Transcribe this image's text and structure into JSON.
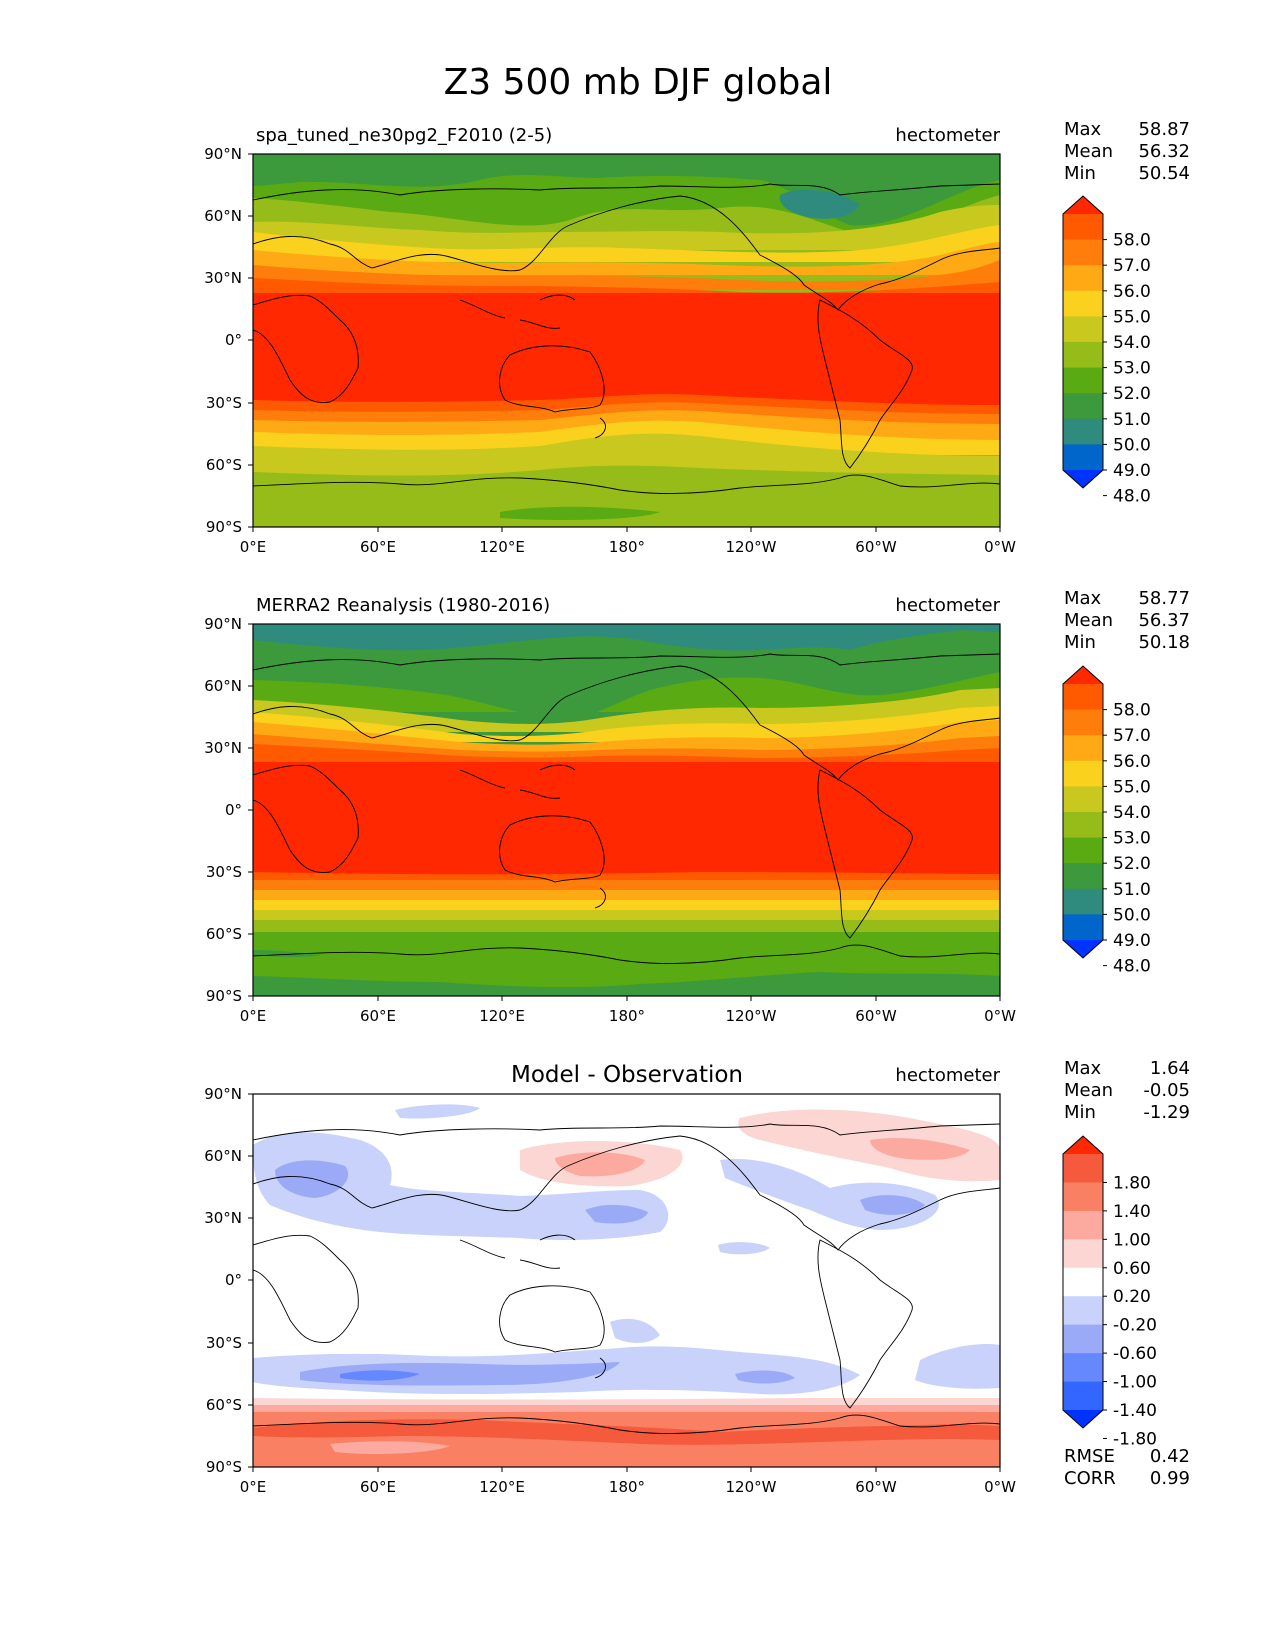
{
  "title": "Z3 500 mb DJF global",
  "colors": {
    "abs_levels": [
      "#0033ff",
      "#0066cc",
      "#2e8b7e",
      "#3c9a3c",
      "#5aaa14",
      "#96bc19",
      "#c8c81e",
      "#fad21e",
      "#ffaa14",
      "#ff7d0a",
      "#ff5a00",
      "#ff2800"
    ],
    "diff_levels": [
      "#0033ff",
      "#3366ff",
      "#6688ff",
      "#9aaaf6",
      "#c8d2fa",
      "#ffffff",
      "#fcd6d2",
      "#fcaaa0",
      "#fa8064",
      "#f55a3c",
      "#ff2800"
    ],
    "coast": "#000000"
  },
  "axes": {
    "lat_ticks": [
      "90°N",
      "60°N",
      "30°N",
      "0°",
      "30°S",
      "60°S",
      "90°S"
    ],
    "lon_ticks": [
      "0°E",
      "60°E",
      "120°E",
      "180°",
      "120°W",
      "60°W",
      "0°W"
    ]
  },
  "chart_data": [
    {
      "type": "heatmap",
      "title": "spa_tuned_ne30pg2_F2010 (2-5)",
      "units": "hectometer",
      "xlabel": "",
      "ylabel": "",
      "xlim": [
        0,
        360
      ],
      "ylim": [
        -90,
        90
      ],
      "stats": {
        "Max": "58.87",
        "Mean": "56.32",
        "Min": "50.54"
      },
      "colorbar_ticks": [
        "58.0",
        "57.0",
        "56.0",
        "55.0",
        "54.0",
        "53.0",
        "52.0",
        "51.0",
        "50.0",
        "49.0",
        "48.0"
      ],
      "zonal_profile": {
        "lat": [
          90,
          75,
          60,
          45,
          30,
          20,
          0,
          -20,
          -30,
          -45,
          -60,
          -75,
          -90
        ],
        "values": [
          51.2,
          51.5,
          52.4,
          54.3,
          56.9,
          58.2,
          58.7,
          58.3,
          57.8,
          55.0,
          53.2,
          52.5,
          52.4
        ]
      }
    },
    {
      "type": "heatmap",
      "title": "MERRA2 Reanalysis (1980-2016)",
      "units": "hectometer",
      "xlabel": "",
      "ylabel": "",
      "xlim": [
        0,
        360
      ],
      "ylim": [
        -90,
        90
      ],
      "stats": {
        "Max": "58.77",
        "Mean": "56.37",
        "Min": "50.18"
      },
      "colorbar_ticks": [
        "58.0",
        "57.0",
        "56.0",
        "55.0",
        "54.0",
        "53.0",
        "52.0",
        "51.0",
        "50.0",
        "49.0",
        "48.0"
      ],
      "zonal_profile": {
        "lat": [
          90,
          75,
          60,
          45,
          30,
          20,
          0,
          -20,
          -30,
          -45,
          -60,
          -75,
          -90
        ],
        "values": [
          51.1,
          51.5,
          52.4,
          54.4,
          57.0,
          58.2,
          58.7,
          58.3,
          57.9,
          55.5,
          52.8,
          51.5,
          51.0
        ]
      }
    },
    {
      "type": "heatmap",
      "title": "Model - Observation",
      "units": "hectometer",
      "xlabel": "",
      "ylabel": "",
      "xlim": [
        0,
        360
      ],
      "ylim": [
        -90,
        90
      ],
      "stats": {
        "Max": "1.64",
        "Mean": "-0.05",
        "Min": "-1.29"
      },
      "colorbar_ticks": [
        "1.80",
        "1.40",
        "1.00",
        "0.60",
        "0.20",
        "-0.20",
        "-0.60",
        "-1.00",
        "-1.40",
        "-1.80"
      ],
      "metrics": {
        "RMSE": "0.42",
        "CORR": "0.99"
      },
      "zonal_profile": {
        "lat": [
          90,
          60,
          30,
          0,
          -30,
          -45,
          -55,
          -65,
          -75,
          -90
        ],
        "values": [
          0.0,
          0.0,
          -0.2,
          0.0,
          -0.3,
          -0.6,
          0.0,
          0.8,
          1.2,
          1.3
        ]
      }
    }
  ]
}
